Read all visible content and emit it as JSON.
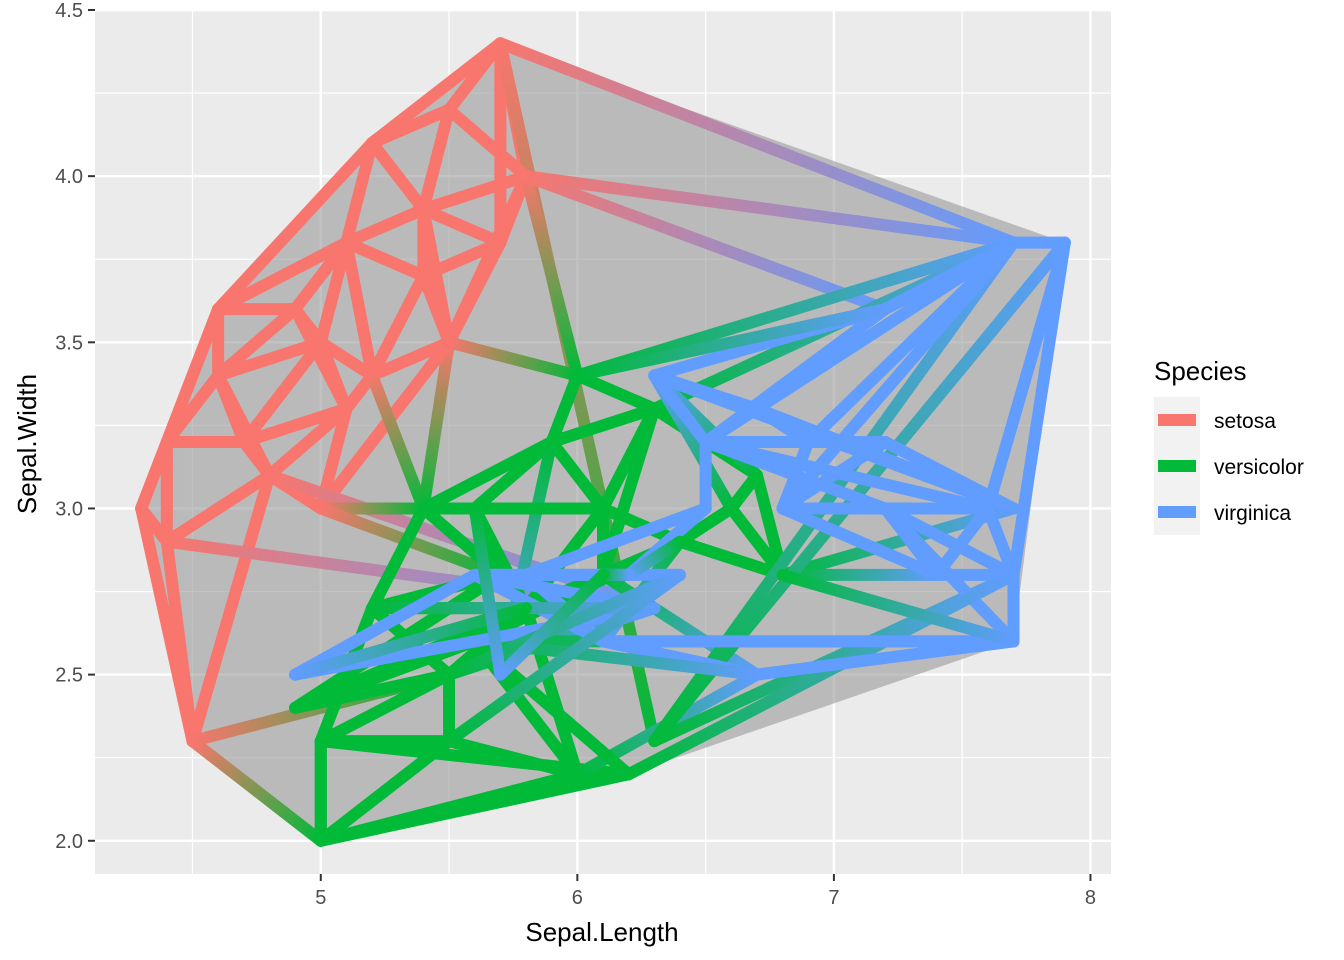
{
  "chart_data": {
    "type": "network",
    "xlabel": "Sepal.Length",
    "ylabel": "Sepal.Width",
    "xlim": [
      4.12,
      8.08
    ],
    "ylim": [
      1.9,
      4.5
    ],
    "x_ticks": [
      5,
      6,
      7,
      8
    ],
    "y_ticks": [
      "2.0",
      "2.5",
      "3.0",
      "3.5",
      "4.0",
      "4.5"
    ],
    "grid": true,
    "legend": {
      "title": "Species",
      "position": "right",
      "entries": [
        {
          "label": "setosa",
          "color": "#F8766D"
        },
        {
          "label": "versicolor",
          "color": "#00BA38"
        },
        {
          "label": "virginica",
          "color": "#619CFF"
        }
      ]
    },
    "hull": {
      "fill": "#999999",
      "points": [
        [
          4.3,
          3.0
        ],
        [
          4.6,
          3.6
        ],
        [
          5.2,
          4.1
        ],
        [
          5.7,
          4.4
        ],
        [
          7.9,
          3.8
        ],
        [
          7.7,
          2.6
        ],
        [
          6.2,
          2.2
        ],
        [
          5.0,
          2.0
        ],
        [
          4.5,
          2.3
        ]
      ]
    },
    "colors": {
      "setosa": "#F8766D",
      "versicolor": "#00BA38",
      "virginica": "#619CFF"
    },
    "nodes": [
      {
        "x": 5.7,
        "y": 4.4,
        "s": "setosa"
      },
      {
        "x": 5.5,
        "y": 4.2,
        "s": "setosa"
      },
      {
        "x": 5.2,
        "y": 4.1,
        "s": "setosa"
      },
      {
        "x": 5.8,
        "y": 4.0,
        "s": "setosa"
      },
      {
        "x": 5.4,
        "y": 3.9,
        "s": "setosa"
      },
      {
        "x": 5.1,
        "y": 3.8,
        "s": "setosa"
      },
      {
        "x": 5.7,
        "y": 3.8,
        "s": "setosa"
      },
      {
        "x": 5.4,
        "y": 3.7,
        "s": "setosa"
      },
      {
        "x": 4.6,
        "y": 3.6,
        "s": "setosa"
      },
      {
        "x": 4.9,
        "y": 3.6,
        "s": "setosa"
      },
      {
        "x": 5.0,
        "y": 3.5,
        "s": "setosa"
      },
      {
        "x": 5.5,
        "y": 3.5,
        "s": "setosa"
      },
      {
        "x": 5.2,
        "y": 3.4,
        "s": "setosa"
      },
      {
        "x": 4.6,
        "y": 3.4,
        "s": "setosa"
      },
      {
        "x": 5.1,
        "y": 3.3,
        "s": "setosa"
      },
      {
        "x": 4.7,
        "y": 3.2,
        "s": "setosa"
      },
      {
        "x": 4.4,
        "y": 3.2,
        "s": "setosa"
      },
      {
        "x": 4.8,
        "y": 3.1,
        "s": "setosa"
      },
      {
        "x": 4.3,
        "y": 3.0,
        "s": "setosa"
      },
      {
        "x": 4.4,
        "y": 2.9,
        "s": "setosa"
      },
      {
        "x": 4.5,
        "y": 2.3,
        "s": "setosa"
      },
      {
        "x": 5.0,
        "y": 3.0,
        "s": "setosa"
      },
      {
        "x": 6.0,
        "y": 3.4,
        "s": "versicolor"
      },
      {
        "x": 5.9,
        "y": 3.2,
        "s": "versicolor"
      },
      {
        "x": 6.3,
        "y": 3.3,
        "s": "versicolor"
      },
      {
        "x": 5.4,
        "y": 3.0,
        "s": "versicolor"
      },
      {
        "x": 5.6,
        "y": 3.0,
        "s": "versicolor"
      },
      {
        "x": 6.1,
        "y": 3.0,
        "s": "versicolor"
      },
      {
        "x": 6.6,
        "y": 3.0,
        "s": "versicolor"
      },
      {
        "x": 6.7,
        "y": 3.1,
        "s": "versicolor"
      },
      {
        "x": 6.1,
        "y": 2.8,
        "s": "versicolor"
      },
      {
        "x": 6.4,
        "y": 2.9,
        "s": "versicolor"
      },
      {
        "x": 6.8,
        "y": 2.8,
        "s": "versicolor"
      },
      {
        "x": 5.7,
        "y": 2.8,
        "s": "versicolor"
      },
      {
        "x": 5.2,
        "y": 2.7,
        "s": "versicolor"
      },
      {
        "x": 5.8,
        "y": 2.7,
        "s": "versicolor"
      },
      {
        "x": 5.5,
        "y": 2.5,
        "s": "versicolor"
      },
      {
        "x": 5.0,
        "y": 2.3,
        "s": "versicolor"
      },
      {
        "x": 5.5,
        "y": 2.3,
        "s": "versicolor"
      },
      {
        "x": 6.0,
        "y": 2.2,
        "s": "versicolor"
      },
      {
        "x": 6.2,
        "y": 2.2,
        "s": "versicolor"
      },
      {
        "x": 5.0,
        "y": 2.0,
        "s": "versicolor"
      },
      {
        "x": 4.9,
        "y": 2.4,
        "s": "versicolor"
      },
      {
        "x": 5.6,
        "y": 2.6,
        "s": "versicolor"
      },
      {
        "x": 6.3,
        "y": 2.3,
        "s": "versicolor"
      },
      {
        "x": 7.9,
        "y": 3.8,
        "s": "virginica"
      },
      {
        "x": 7.7,
        "y": 3.8,
        "s": "virginica"
      },
      {
        "x": 7.2,
        "y": 3.6,
        "s": "virginica"
      },
      {
        "x": 6.3,
        "y": 3.4,
        "s": "virginica"
      },
      {
        "x": 6.7,
        "y": 3.3,
        "s": "virginica"
      },
      {
        "x": 6.9,
        "y": 3.2,
        "s": "virginica"
      },
      {
        "x": 7.2,
        "y": 3.2,
        "s": "virginica"
      },
      {
        "x": 6.5,
        "y": 3.2,
        "s": "virginica"
      },
      {
        "x": 7.6,
        "y": 3.0,
        "s": "virginica"
      },
      {
        "x": 7.7,
        "y": 3.0,
        "s": "virginica"
      },
      {
        "x": 6.8,
        "y": 3.0,
        "s": "virginica"
      },
      {
        "x": 7.2,
        "y": 3.0,
        "s": "virginica"
      },
      {
        "x": 7.4,
        "y": 2.8,
        "s": "virginica"
      },
      {
        "x": 7.7,
        "y": 2.8,
        "s": "virginica"
      },
      {
        "x": 7.7,
        "y": 2.6,
        "s": "virginica"
      },
      {
        "x": 6.7,
        "y": 2.5,
        "s": "virginica"
      },
      {
        "x": 6.1,
        "y": 2.6,
        "s": "virginica"
      },
      {
        "x": 6.3,
        "y": 2.7,
        "s": "virginica"
      },
      {
        "x": 4.9,
        "y": 2.5,
        "s": "virginica"
      },
      {
        "x": 5.6,
        "y": 2.8,
        "s": "virginica"
      },
      {
        "x": 5.8,
        "y": 2.8,
        "s": "virginica"
      },
      {
        "x": 6.5,
        "y": 3.0,
        "s": "virginica"
      },
      {
        "x": 6.2,
        "y": 2.8,
        "s": "virginica"
      },
      {
        "x": 6.4,
        "y": 2.8,
        "s": "virginica"
      },
      {
        "x": 5.7,
        "y": 2.5,
        "s": "virginica"
      },
      {
        "x": 6.0,
        "y": 3.0,
        "s": "virginica"
      }
    ],
    "edges": [
      [
        0,
        1
      ],
      [
        0,
        2
      ],
      [
        0,
        3
      ],
      [
        0,
        6
      ],
      [
        0,
        46
      ],
      [
        0,
        44
      ],
      [
        1,
        2
      ],
      [
        1,
        3
      ],
      [
        1,
        4
      ],
      [
        2,
        4
      ],
      [
        2,
        5
      ],
      [
        2,
        8
      ],
      [
        3,
        4
      ],
      [
        3,
        6
      ],
      [
        3,
        11
      ],
      [
        3,
        22
      ],
      [
        3,
        46
      ],
      [
        3,
        47
      ],
      [
        4,
        5
      ],
      [
        4,
        6
      ],
      [
        4,
        7
      ],
      [
        4,
        11
      ],
      [
        5,
        7
      ],
      [
        5,
        8
      ],
      [
        5,
        9
      ],
      [
        5,
        10
      ],
      [
        5,
        12
      ],
      [
        6,
        7
      ],
      [
        6,
        11
      ],
      [
        7,
        11
      ],
      [
        7,
        12
      ],
      [
        8,
        9
      ],
      [
        8,
        13
      ],
      [
        8,
        16
      ],
      [
        9,
        10
      ],
      [
        9,
        13
      ],
      [
        9,
        14
      ],
      [
        10,
        12
      ],
      [
        10,
        14
      ],
      [
        10,
        15
      ],
      [
        10,
        13
      ],
      [
        11,
        12
      ],
      [
        11,
        22
      ],
      [
        11,
        25
      ],
      [
        11,
        21
      ],
      [
        12,
        14
      ],
      [
        12,
        25
      ],
      [
        13,
        15
      ],
      [
        13,
        16
      ],
      [
        13,
        17
      ],
      [
        14,
        15
      ],
      [
        14,
        17
      ],
      [
        14,
        21
      ],
      [
        15,
        16
      ],
      [
        15,
        17
      ],
      [
        16,
        18
      ],
      [
        16,
        19
      ],
      [
        17,
        19
      ],
      [
        17,
        20
      ],
      [
        17,
        21
      ],
      [
        17,
        62
      ],
      [
        18,
        19
      ],
      [
        18,
        20
      ],
      [
        18,
        8
      ],
      [
        19,
        20
      ],
      [
        19,
        62
      ],
      [
        20,
        41
      ],
      [
        20,
        36
      ],
      [
        21,
        25
      ],
      [
        21,
        33
      ],
      [
        22,
        23
      ],
      [
        22,
        46
      ],
      [
        22,
        24
      ],
      [
        23,
        25
      ],
      [
        23,
        26
      ],
      [
        23,
        27
      ],
      [
        23,
        24
      ],
      [
        23,
        69
      ],
      [
        24,
        27
      ],
      [
        24,
        29
      ],
      [
        24,
        46
      ],
      [
        24,
        30
      ],
      [
        25,
        26
      ],
      [
        25,
        33
      ],
      [
        25,
        34
      ],
      [
        26,
        27
      ],
      [
        26,
        33
      ],
      [
        26,
        35
      ],
      [
        27,
        30
      ],
      [
        27,
        35
      ],
      [
        27,
        31
      ],
      [
        28,
        29
      ],
      [
        28,
        31
      ],
      [
        28,
        32
      ],
      [
        28,
        48
      ],
      [
        29,
        48
      ],
      [
        29,
        32
      ],
      [
        30,
        31
      ],
      [
        30,
        35
      ],
      [
        30,
        60
      ],
      [
        31,
        32
      ],
      [
        31,
        43
      ],
      [
        31,
        61
      ],
      [
        32,
        54
      ],
      [
        32,
        59
      ],
      [
        32,
        57
      ],
      [
        33,
        34
      ],
      [
        33,
        35
      ],
      [
        33,
        42
      ],
      [
        34,
        35
      ],
      [
        34,
        36
      ],
      [
        34,
        37
      ],
      [
        34,
        62
      ],
      [
        35,
        36
      ],
      [
        35,
        39
      ],
      [
        35,
        42
      ],
      [
        36,
        37
      ],
      [
        36,
        38
      ],
      [
        36,
        42
      ],
      [
        36,
        62
      ],
      [
        37,
        38
      ],
      [
        37,
        40
      ],
      [
        37,
        41
      ],
      [
        38,
        39
      ],
      [
        38,
        41
      ],
      [
        39,
        40
      ],
      [
        39,
        41
      ],
      [
        39,
        60
      ],
      [
        39,
        43
      ],
      [
        40,
        43
      ],
      [
        40,
        41
      ],
      [
        40,
        58
      ],
      [
        41,
        37
      ],
      [
        42,
        43
      ],
      [
        43,
        59
      ],
      [
        43,
        60
      ],
      [
        44,
        45
      ],
      [
        44,
        46
      ],
      [
        44,
        58
      ],
      [
        45,
        46
      ],
      [
        45,
        53
      ],
      [
        45,
        58
      ],
      [
        46,
        47
      ],
      [
        46,
        50
      ],
      [
        46,
        49
      ],
      [
        46,
        52
      ],
      [
        46,
        55
      ],
      [
        47,
        48
      ],
      [
        47,
        52
      ],
      [
        47,
        22
      ],
      [
        48,
        49
      ],
      [
        48,
        52
      ],
      [
        48,
        54
      ],
      [
        49,
        50
      ],
      [
        49,
        54
      ],
      [
        50,
        52
      ],
      [
        50,
        55
      ],
      [
        51,
        54
      ],
      [
        51,
        55
      ],
      [
        51,
        52
      ],
      [
        52,
        53
      ],
      [
        52,
        56
      ],
      [
        53,
        55
      ],
      [
        53,
        56
      ],
      [
        53,
        57
      ],
      [
        53,
        58
      ],
      [
        55,
        56
      ],
      [
        55,
        57
      ],
      [
        56,
        57
      ],
      [
        56,
        58
      ],
      [
        56,
        59
      ],
      [
        57,
        58
      ],
      [
        58,
        59
      ],
      [
        58,
        40
      ],
      [
        59,
        60
      ],
      [
        59,
        61
      ],
      [
        59,
        32
      ],
      [
        60,
        61
      ],
      [
        60,
        43
      ],
      [
        61,
        65
      ],
      [
        61,
        64
      ],
      [
        62,
        64
      ],
      [
        62,
        63
      ],
      [
        62,
        34
      ],
      [
        63,
        64
      ],
      [
        63,
        35
      ],
      [
        64,
        68
      ],
      [
        64,
        65
      ],
      [
        65,
        67
      ],
      [
        65,
        66
      ],
      [
        66,
        67
      ],
      [
        66,
        52
      ],
      [
        67,
        31
      ],
      [
        67,
        30
      ],
      [
        68,
        38
      ],
      [
        68,
        36
      ],
      [
        69,
        26
      ],
      [
        69,
        30
      ]
    ]
  }
}
